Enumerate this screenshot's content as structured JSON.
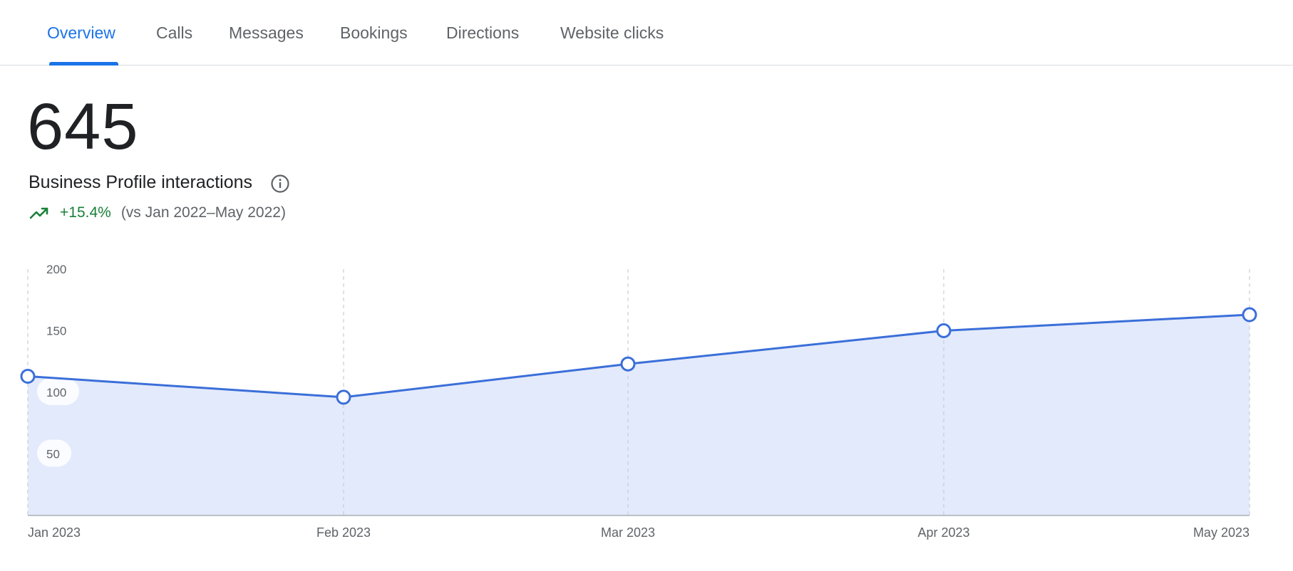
{
  "tabs": [
    {
      "label": "Overview",
      "active": true
    },
    {
      "label": "Calls",
      "active": false
    },
    {
      "label": "Messages",
      "active": false
    },
    {
      "label": "Bookings",
      "active": false
    },
    {
      "label": "Directions",
      "active": false
    },
    {
      "label": "Website clicks",
      "active": false
    }
  ],
  "summary": {
    "total": "645",
    "label": "Business Profile interactions",
    "change": "+15.4%",
    "comparison": "(vs Jan 2022–May 2022)",
    "icons": {
      "info": "info-icon",
      "trend": "trending-up-icon"
    }
  },
  "colors": {
    "accent": "#1a73e8",
    "line": "#3b6fd9",
    "area": "#e3eafb",
    "positive": "#188038"
  },
  "chart_data": {
    "type": "area",
    "categories": [
      "Jan 2023",
      "Feb 2023",
      "Mar 2023",
      "Apr 2023",
      "May 2023"
    ],
    "values": [
      113,
      96,
      123,
      150,
      163
    ],
    "ylim": [
      0,
      200
    ],
    "yticks": [
      "200",
      "150",
      "100",
      "50"
    ],
    "grid": "vertical-dashed",
    "markers": "hollow-circles"
  }
}
